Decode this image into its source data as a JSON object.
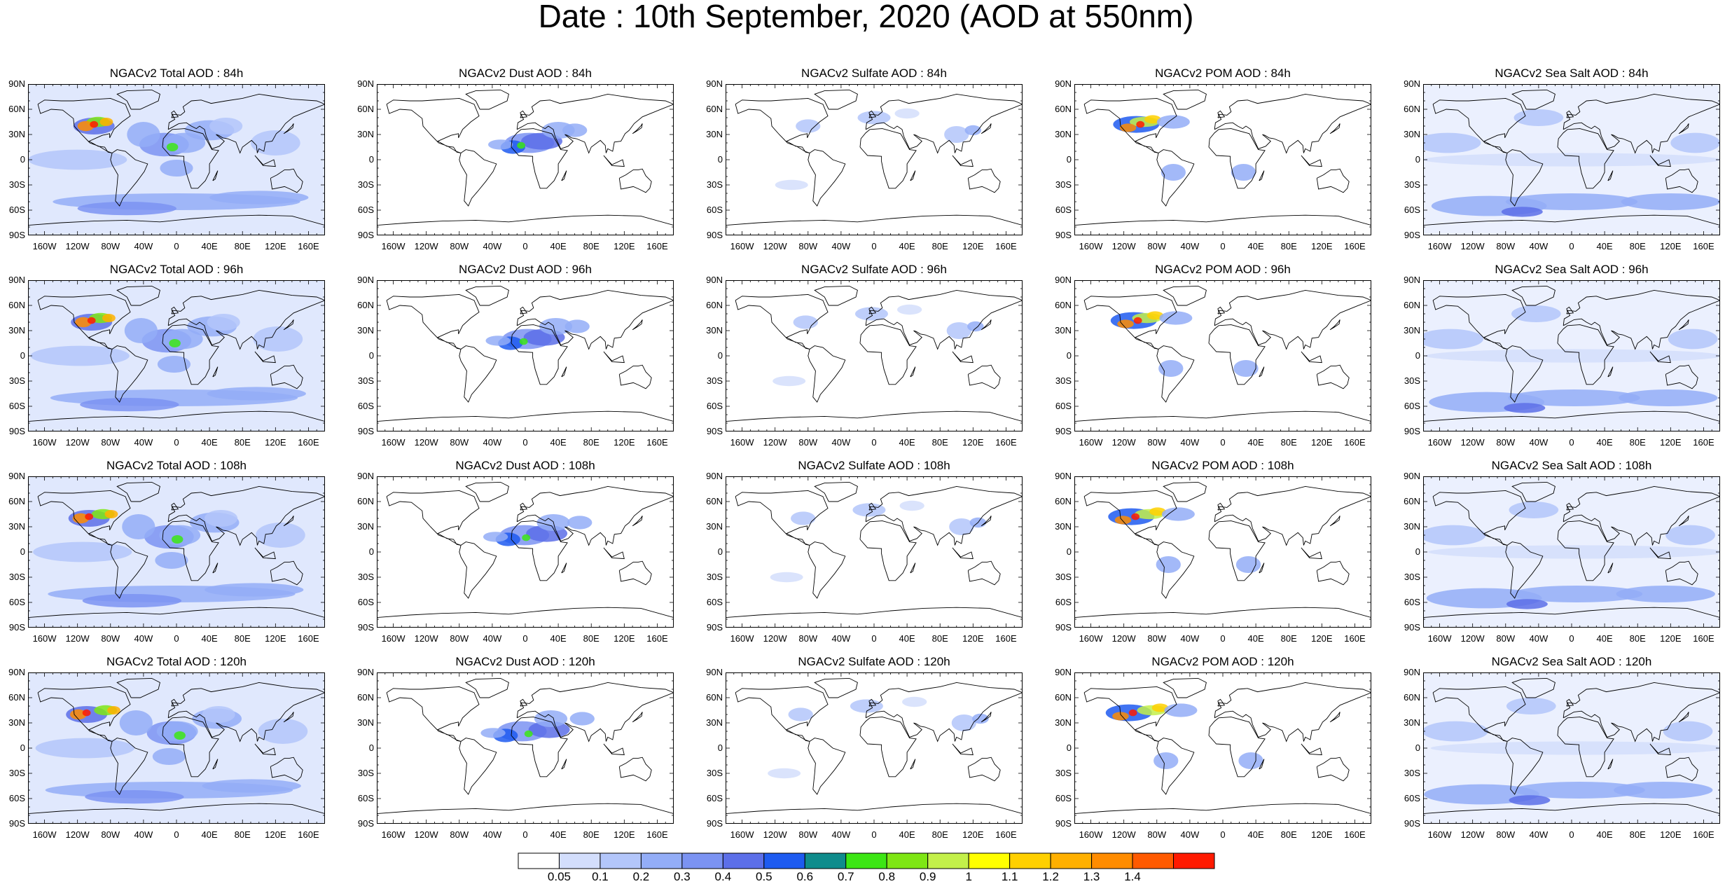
{
  "figure": {
    "title": "Date : 10th September, 2020 (AOD at 550nm)"
  },
  "panels": [
    [
      "NGACv2 Total AOD : 84h",
      "NGACv2 Dust AOD : 84h",
      "NGACv2 Sulfate AOD : 84h",
      "NGACv2 POM AOD : 84h",
      "NGACv2 Sea Salt AOD : 84h"
    ],
    [
      "NGACv2 Total AOD : 96h",
      "NGACv2 Dust AOD : 96h",
      "NGACv2 Sulfate AOD : 96h",
      "NGACv2 POM AOD : 96h",
      "NGACv2 Sea Salt AOD : 96h"
    ],
    [
      "NGACv2 Total AOD : 108h",
      "NGACv2 Dust AOD : 108h",
      "NGACv2 Sulfate AOD : 108h",
      "NGACv2 POM AOD : 108h",
      "NGACv2 Sea Salt AOD : 108h"
    ],
    [
      "NGACv2 Total AOD : 120h",
      "NGACv2 Dust AOD : 120h",
      "NGACv2 Sulfate AOD : 120h",
      "NGACv2 POM AOD : 120h",
      "NGACv2 Sea Salt  AOD : 120h"
    ]
  ],
  "lat_ticks": [
    "90N",
    "60N",
    "30N",
    "0",
    "30S",
    "60S",
    "90S"
  ],
  "lon_ticks": [
    "160W",
    "120W",
    "80W",
    "40W",
    "0",
    "40E",
    "80E",
    "120E",
    "160E"
  ],
  "colorbar": {
    "labels": [
      "0.05",
      "0.1",
      "0.2",
      "0.3",
      "0.4",
      "0.5",
      "0.6",
      "0.7",
      "0.8",
      "0.9",
      "1",
      "1.1",
      "1.2",
      "1.3",
      "1.4"
    ],
    "colors": [
      "#ffffff",
      "#d3defc",
      "#b3c6fa",
      "#93adf7",
      "#7b93f2",
      "#5c6fe8",
      "#1e5bf0",
      "#0f8c8c",
      "#3ce614",
      "#7ee614",
      "#c3f04a",
      "#ffff00",
      "#ffd000",
      "#ffb000",
      "#ff8c00",
      "#ff5a00",
      "#ff1a00"
    ]
  }
}
